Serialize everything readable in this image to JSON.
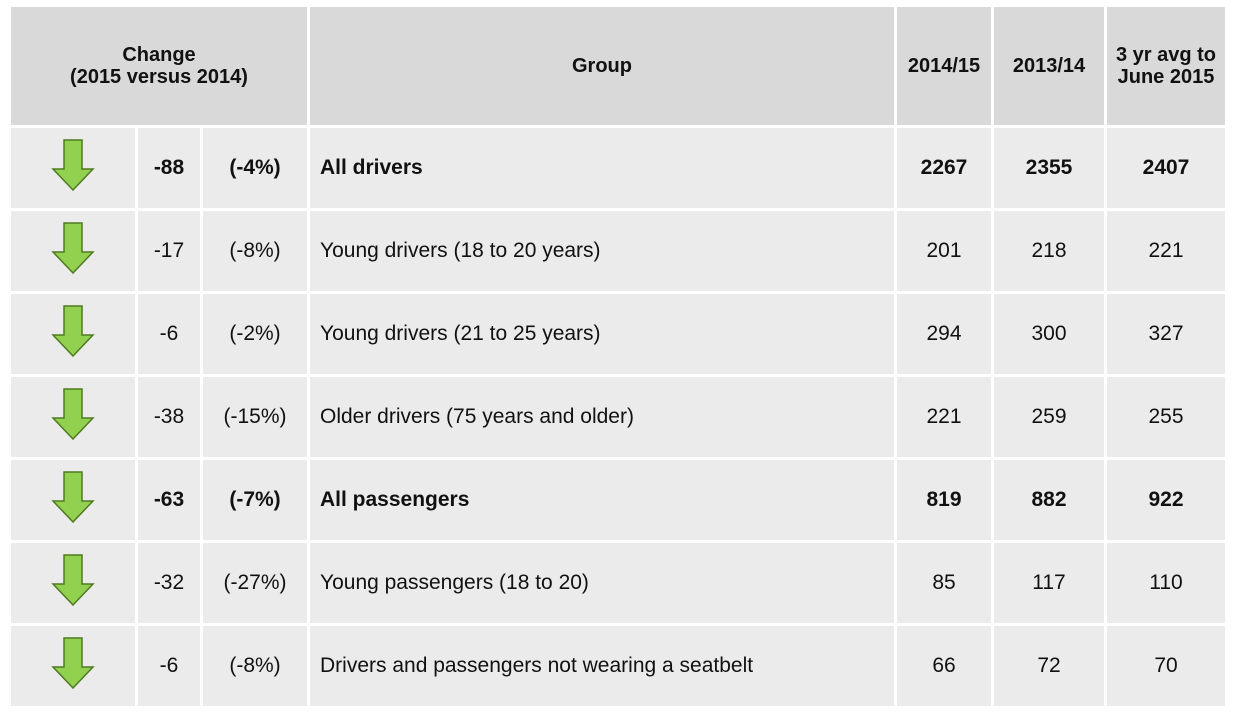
{
  "table": {
    "header": {
      "change": [
        "Change",
        "(2015 versus 2014)"
      ],
      "group": "Group",
      "columns": [
        "2014/15",
        "2013/14",
        "3 yr avg to June 2015"
      ]
    },
    "rows": [
      {
        "change": "-88",
        "percent": "(-4%)",
        "group": "All drivers",
        "values": [
          "2267",
          "2355",
          "2407"
        ],
        "bold": true
      },
      {
        "change": "-17",
        "percent": "(-8%)",
        "group": "Young drivers (18 to 20 years)",
        "values": [
          "201",
          "218",
          "221"
        ],
        "bold": false
      },
      {
        "change": "-6",
        "percent": "(-2%)",
        "group": "Young drivers (21 to 25 years)",
        "values": [
          "294",
          "300",
          "327"
        ],
        "bold": false
      },
      {
        "change": "-38",
        "percent": "(-15%)",
        "group": "Older drivers (75 years and older)",
        "values": [
          "221",
          "259",
          "255"
        ],
        "bold": false
      },
      {
        "change": "-63",
        "percent": "(-7%)",
        "group": "All passengers",
        "values": [
          "819",
          "882",
          "922"
        ],
        "bold": true
      },
      {
        "change": "-32",
        "percent": "(-27%)",
        "group": "Young passengers (18 to 20)",
        "values": [
          "85",
          "117",
          "110"
        ],
        "bold": false
      },
      {
        "change": "-6",
        "percent": "(-8%)",
        "group": "Drivers and passengers not wearing a seatbelt",
        "values": [
          "66",
          "72",
          "70"
        ],
        "bold": false
      }
    ]
  }
}
